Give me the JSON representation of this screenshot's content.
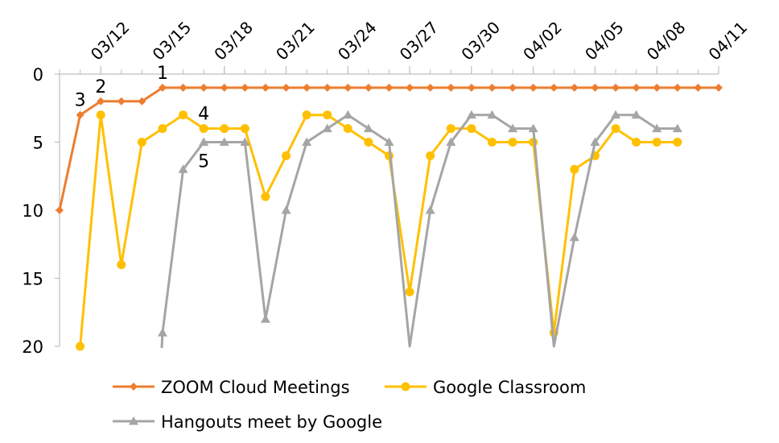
{
  "chart_data": {
    "type": "line",
    "y_reversed": true,
    "ylim": [
      0,
      20
    ],
    "yticks": [
      0,
      5,
      10,
      15,
      20
    ],
    "xlim": [
      "03/10",
      "04/11"
    ],
    "xticks": [
      "03/12",
      "03/15",
      "03/18",
      "03/21",
      "03/24",
      "03/27",
      "03/30",
      "04/02",
      "04/05",
      "04/08",
      "04/11"
    ],
    "grid": false,
    "legend_position": "bottom",
    "series": [
      {
        "name": "ZOOM Cloud Meetings",
        "color": "#ED7D31",
        "marker": "diamond",
        "points": [
          [
            "03/10",
            10
          ],
          [
            "03/11",
            3
          ],
          [
            "03/12",
            2
          ],
          [
            "03/13",
            2
          ],
          [
            "03/14",
            2
          ],
          [
            "03/15",
            1
          ],
          [
            "03/16",
            1
          ],
          [
            "03/17",
            1
          ],
          [
            "03/18",
            1
          ],
          [
            "03/19",
            1
          ],
          [
            "03/20",
            1
          ],
          [
            "03/21",
            1
          ],
          [
            "03/22",
            1
          ],
          [
            "03/23",
            1
          ],
          [
            "03/24",
            1
          ],
          [
            "03/25",
            1
          ],
          [
            "03/26",
            1
          ],
          [
            "03/27",
            1
          ],
          [
            "03/28",
            1
          ],
          [
            "03/29",
            1
          ],
          [
            "03/30",
            1
          ],
          [
            "03/31",
            1
          ],
          [
            "04/01",
            1
          ],
          [
            "04/02",
            1
          ],
          [
            "04/03",
            1
          ],
          [
            "04/04",
            1
          ],
          [
            "04/05",
            1
          ],
          [
            "04/06",
            1
          ],
          [
            "04/07",
            1
          ],
          [
            "04/08",
            1
          ],
          [
            "04/09",
            1
          ],
          [
            "04/10",
            1
          ],
          [
            "04/11",
            1
          ]
        ]
      },
      {
        "name": "Google Classroom",
        "color": "#FFC000",
        "marker": "circle",
        "points": [
          [
            "03/11",
            20
          ],
          [
            "03/12",
            3
          ],
          [
            "03/13",
            14
          ],
          [
            "03/14",
            5
          ],
          [
            "03/15",
            4
          ],
          [
            "03/16",
            3
          ],
          [
            "03/17",
            4
          ],
          [
            "03/18",
            4
          ],
          [
            "03/19",
            4
          ],
          [
            "03/20",
            9
          ],
          [
            "03/21",
            6
          ],
          [
            "03/22",
            3
          ],
          [
            "03/23",
            3
          ],
          [
            "03/24",
            4
          ],
          [
            "03/25",
            5
          ],
          [
            "03/26",
            6
          ],
          [
            "03/27",
            16
          ],
          [
            "03/28",
            6
          ],
          [
            "03/29",
            4
          ],
          [
            "03/30",
            4
          ],
          [
            "03/31",
            5
          ],
          [
            "04/01",
            5
          ],
          [
            "04/02",
            5
          ],
          [
            "04/03",
            19
          ],
          [
            "04/04",
            7
          ],
          [
            "04/05",
            6
          ],
          [
            "04/06",
            4
          ],
          [
            "04/07",
            5
          ],
          [
            "04/08",
            5
          ],
          [
            "04/09",
            5
          ]
        ]
      },
      {
        "name": "Hangouts meet by Google",
        "color": "#A5A5A5",
        "marker": "triangle",
        "points": [
          [
            "03/15",
            19
          ],
          [
            "03/16",
            7
          ],
          [
            "03/17",
            5
          ],
          [
            "03/18",
            5
          ],
          [
            "03/19",
            5
          ],
          [
            "03/20",
            18
          ],
          [
            "03/21",
            10
          ],
          [
            "03/22",
            5
          ],
          [
            "03/23",
            4
          ],
          [
            "03/24",
            3
          ],
          [
            "03/25",
            4
          ],
          [
            "03/26",
            5
          ],
          [
            "03/27",
            20
          ],
          [
            "03/28",
            10
          ],
          [
            "03/29",
            5
          ],
          [
            "03/30",
            3
          ],
          [
            "03/31",
            3
          ],
          [
            "04/01",
            4
          ],
          [
            "04/02",
            4
          ],
          [
            "04/03",
            20
          ],
          [
            "04/04",
            12
          ],
          [
            "04/05",
            5
          ],
          [
            "04/06",
            3
          ],
          [
            "04/07",
            3
          ],
          [
            "04/08",
            4
          ],
          [
            "04/09",
            4
          ]
        ],
        "leading_segment_to_below_axis": true
      }
    ],
    "annotations": [
      {
        "text": "1",
        "x": "03/15",
        "y": 1,
        "anchor": "above"
      },
      {
        "text": "2",
        "x": "03/12",
        "y": 2,
        "anchor": "above"
      },
      {
        "text": "3",
        "x": "03/11",
        "y": 3,
        "anchor": "above"
      },
      {
        "text": "4",
        "x": "03/17",
        "y": 4,
        "anchor": "above"
      },
      {
        "text": "5",
        "x": "03/17",
        "y": 5,
        "anchor": "below"
      }
    ]
  }
}
